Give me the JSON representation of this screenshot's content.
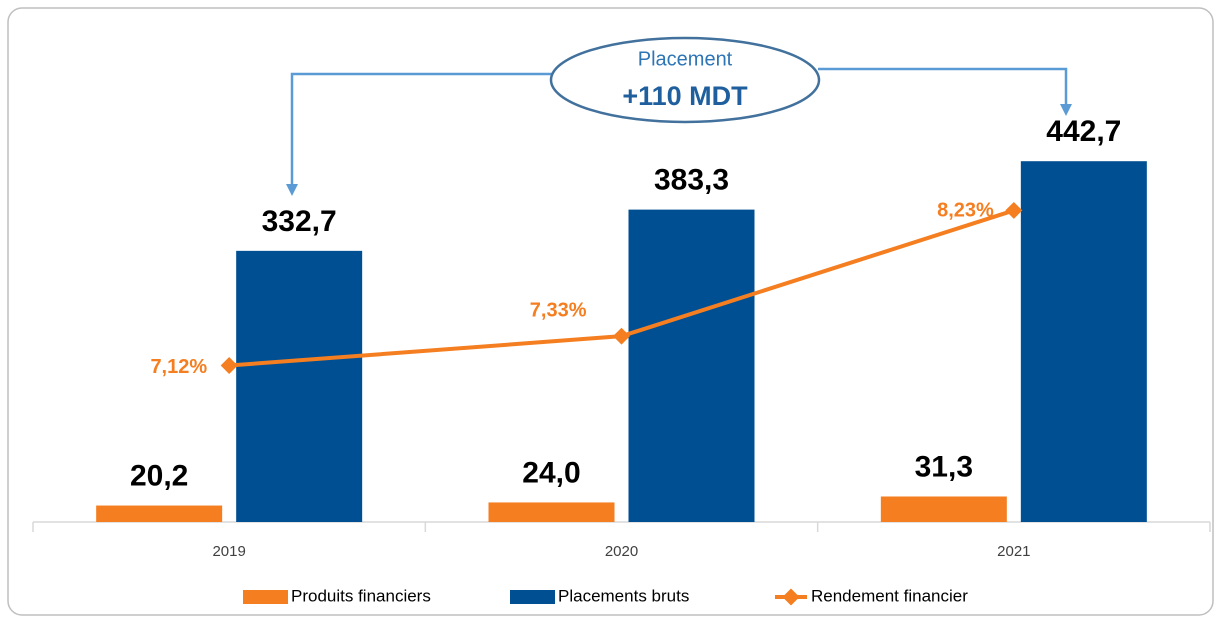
{
  "chart_data": {
    "type": "bar",
    "categories": [
      "2019",
      "2020",
      "2021"
    ],
    "series": [
      {
        "name": "Produits financiers",
        "type": "bar",
        "color": "#f47e20",
        "values": [
          20.2,
          24.0,
          31.3
        ],
        "value_labels": [
          "20,2",
          "24,0",
          "31,3"
        ]
      },
      {
        "name": "Placements bruts",
        "type": "bar",
        "color": "#004f93",
        "values": [
          332.7,
          383.3,
          442.7
        ],
        "value_labels": [
          "332,7",
          "383,3",
          "442,7"
        ]
      },
      {
        "name": "Rendement financier",
        "type": "line",
        "axis": "y2",
        "color": "#f47e20",
        "values": [
          7.12,
          7.33,
          8.23
        ],
        "value_labels": [
          "7,12%",
          "7,33%",
          "8,23%"
        ]
      }
    ],
    "ylim": [
      0,
      600
    ],
    "y2lim": [
      6,
      9.5
    ],
    "annotation": {
      "title": "Placement",
      "value": "+110 MDT"
    },
    "legend": "bottom"
  }
}
